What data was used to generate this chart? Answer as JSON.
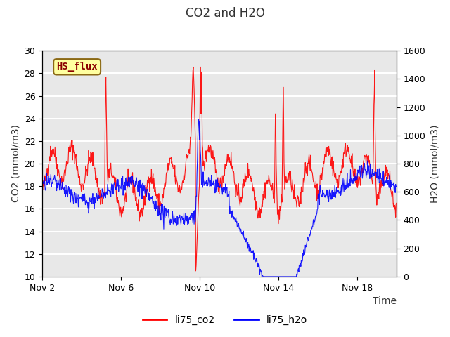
{
  "title": "CO2 and H2O",
  "xlabel": "Time",
  "ylabel_left": "CO2 (mmol/m3)",
  "ylabel_right": "H2O (mmol/m3)",
  "ylim_left": [
    10,
    30
  ],
  "ylim_right": [
    0,
    1600
  ],
  "yticks_left": [
    10,
    12,
    14,
    16,
    18,
    20,
    22,
    24,
    26,
    28,
    30
  ],
  "yticks_right": [
    0,
    200,
    400,
    600,
    800,
    1000,
    1200,
    1400,
    1600
  ],
  "xtick_labels": [
    "Nov 2",
    "Nov 6",
    "Nov 10",
    "Nov 14",
    "Nov 18"
  ],
  "legend_labels": [
    "li75_co2",
    "li75_h2o"
  ],
  "legend_colors": [
    "red",
    "blue"
  ],
  "box_label": "HS_flux",
  "box_text_color": "#8B0000",
  "box_bg_color": "#FFFFA0",
  "box_border_color": "#8B6914",
  "background_color": "#E8E8E8",
  "grid_color": "white",
  "title_color": "#333333",
  "co2_color": "red",
  "h2o_color": "blue",
  "n_days": 18,
  "points_per_day": 48
}
